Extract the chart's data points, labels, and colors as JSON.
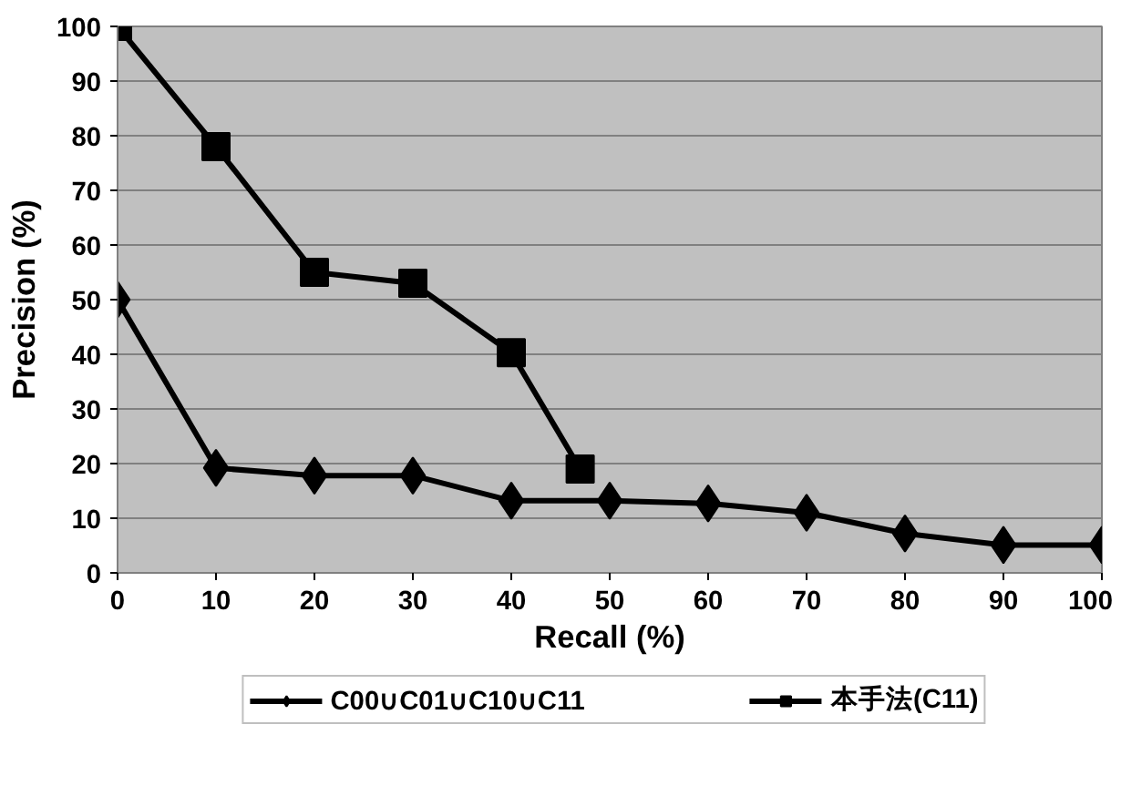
{
  "chart_data": {
    "type": "line",
    "xlabel": "Recall (%)",
    "ylabel": "Precision (%)",
    "xlim": [
      0,
      100
    ],
    "xticks": [
      0,
      10,
      20,
      30,
      40,
      50,
      60,
      70,
      80,
      90,
      100
    ],
    "ylim": [
      0,
      100
    ],
    "yticks": [
      0,
      10,
      20,
      30,
      40,
      50,
      60,
      70,
      80,
      90,
      100
    ],
    "grid": "y",
    "legend": "bottom",
    "line_style": "solid",
    "series": [
      {
        "name": "C00∪C01∪C10∪C11",
        "color": "#000000",
        "marker": "diamond",
        "x": [
          0,
          10,
          20,
          30,
          40,
          50,
          60,
          70,
          80,
          90,
          100
        ],
        "values": [
          50,
          19.2,
          17.8,
          17.8,
          13.2,
          13.2,
          12.7,
          11,
          7.2,
          5.1,
          5.1
        ]
      },
      {
        "name": "本手法(C11)",
        "color": "#000000",
        "marker": "square",
        "x": [
          0,
          10,
          20,
          30,
          40,
          47
        ],
        "values": [
          100,
          78,
          55,
          53,
          40.3,
          19
        ]
      }
    ]
  }
}
